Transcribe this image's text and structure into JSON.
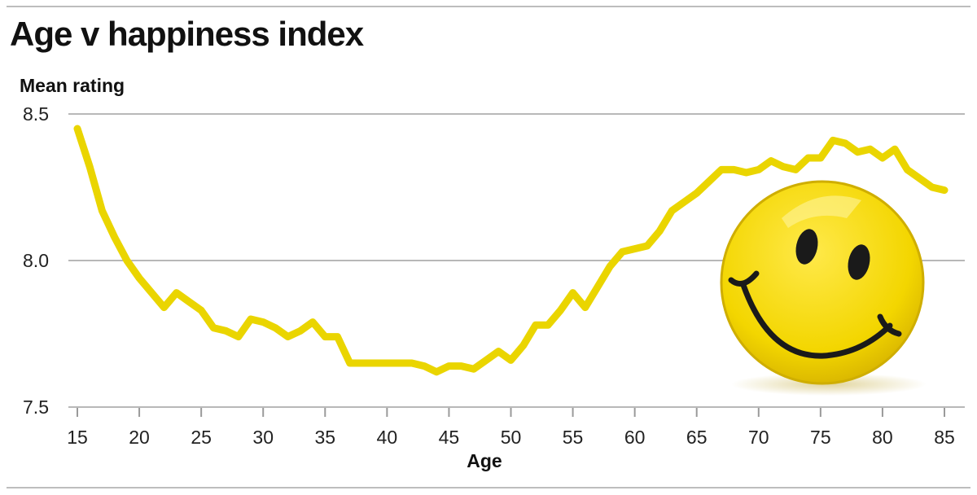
{
  "chart_data": {
    "type": "line",
    "title": "Age v happiness index",
    "ylabel": "Mean rating",
    "xlabel": "Age",
    "xlim": [
      15,
      85
    ],
    "ylim": [
      7.5,
      8.5
    ],
    "x_ticks": [
      15,
      20,
      25,
      30,
      35,
      40,
      45,
      50,
      55,
      60,
      65,
      70,
      75,
      80,
      85
    ],
    "y_ticks": [
      "7.5",
      "8.0",
      "8.5"
    ],
    "grid": "horizontal",
    "line_color": "#ead500",
    "series": [
      {
        "x": [
          15,
          16,
          17,
          18,
          19,
          20,
          21,
          22,
          23,
          24,
          25,
          26,
          27,
          28,
          29,
          30,
          31,
          32,
          33,
          34,
          35,
          36,
          37,
          38,
          39,
          40,
          41,
          42,
          43,
          44,
          45,
          46,
          47,
          48,
          49,
          50,
          51,
          52,
          53,
          54,
          55,
          56,
          57,
          58,
          59,
          60,
          61,
          62,
          63,
          64,
          65,
          66,
          67,
          68,
          69,
          70,
          71,
          72,
          73,
          74,
          75,
          76,
          77,
          78,
          79,
          80,
          81,
          82,
          83,
          84,
          85
        ],
        "y": [
          8.45,
          8.32,
          8.17,
          8.08,
          8.0,
          7.94,
          7.89,
          7.84,
          7.89,
          7.86,
          7.83,
          7.77,
          7.76,
          7.74,
          7.8,
          7.79,
          7.77,
          7.74,
          7.76,
          7.79,
          7.74,
          7.74,
          7.65,
          7.65,
          7.65,
          7.65,
          7.65,
          7.65,
          7.64,
          7.62,
          7.64,
          7.64,
          7.63,
          7.66,
          7.69,
          7.66,
          7.71,
          7.78,
          7.78,
          7.83,
          7.89,
          7.84,
          7.91,
          7.98,
          8.03,
          8.04,
          8.05,
          8.1,
          8.17,
          8.2,
          8.23,
          8.27,
          8.31,
          8.31,
          8.3,
          8.31,
          8.34,
          8.32,
          8.31,
          8.35,
          8.35,
          8.41,
          8.4,
          8.37,
          8.38,
          8.35,
          8.38,
          8.31,
          8.28,
          8.25,
          8.24
        ]
      }
    ]
  },
  "decoration": {
    "type": "smiley-face",
    "color": "#f5dc00"
  }
}
